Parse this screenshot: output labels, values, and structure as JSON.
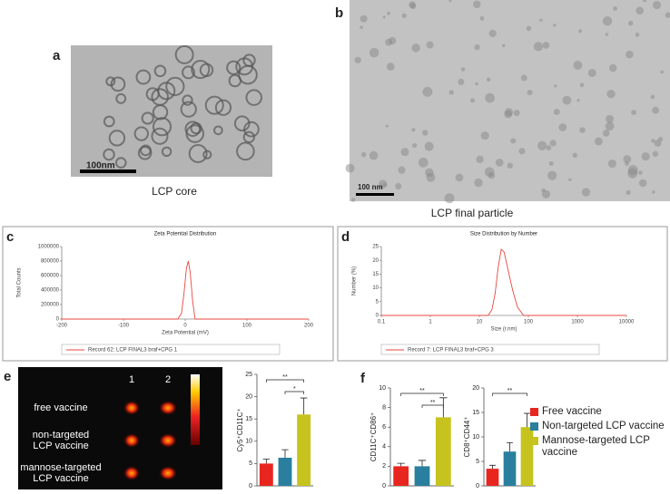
{
  "panels": {
    "a": {
      "label": "a",
      "caption": "LCP core",
      "scale_bar": "100nm"
    },
    "b": {
      "label": "b",
      "caption": "LCP final particle",
      "scale_bar": "100 nm"
    },
    "e": {
      "label": "e",
      "columns": [
        "1",
        "2"
      ],
      "rows": [
        [
          "free vaccine"
        ],
        [
          "non-targeted",
          "LCP vaccine"
        ],
        [
          "mannose-targeted",
          "LCP vaccine"
        ]
      ]
    },
    "f": {
      "label": "f"
    }
  },
  "chart_data": [
    {
      "type": "line",
      "panel": "c",
      "title": "Zeta Potential Distribution",
      "x_label": "Zeta Potential (mV)",
      "y_label": "Total Counts",
      "xlim": [
        -200,
        200
      ],
      "xticks": [
        -200,
        -100,
        0,
        100,
        200
      ],
      "ylim": [
        0,
        1000000
      ],
      "yticks": [
        0,
        200000,
        400000,
        600000,
        800000,
        1000000
      ],
      "series": [
        {
          "name": "Record 62: LCP FINAL3 braf+CPG 1",
          "color": "#e8473f",
          "x": [
            -200,
            -12,
            -6,
            -2,
            2,
            5,
            8,
            12,
            16,
            200
          ],
          "values": [
            0,
            0,
            80000,
            350000,
            700000,
            800000,
            650000,
            250000,
            0,
            0
          ]
        }
      ]
    },
    {
      "type": "line",
      "panel": "d",
      "title": "Size Distribution by Number",
      "x_label": "Size (r.nm)",
      "y_label": "Number (%)",
      "log_x": true,
      "xlim": [
        0.1,
        10000
      ],
      "xticks": [
        0.1,
        1,
        10,
        100,
        1000,
        10000
      ],
      "ylim": [
        0,
        25
      ],
      "yticks": [
        0,
        5,
        10,
        15,
        20,
        25
      ],
      "series": [
        {
          "name": "Record 7: LCP FINAL3 braf+CPG 3",
          "color": "#e8473f",
          "x": [
            0.1,
            15,
            18,
            21,
            24,
            28,
            32,
            38,
            48,
            60,
            80,
            10000
          ],
          "values": [
            0,
            0,
            2,
            8,
            17,
            24,
            23,
            17,
            9,
            3,
            0,
            0
          ]
        }
      ]
    },
    {
      "type": "bar",
      "y_label": "Cy5⁺CD11C⁺",
      "categories": [
        null,
        null,
        null
      ],
      "values": [
        5,
        6.3,
        16
      ],
      "errors": [
        1,
        1.8,
        3.7
      ],
      "colors": [
        "#e8261f",
        "#2a7f9e",
        "#c6c31e"
      ],
      "ylim": [
        0,
        25
      ],
      "yticks": [
        0,
        5,
        10,
        15,
        20,
        25
      ],
      "annotations": [
        "**",
        "*"
      ]
    },
    {
      "type": "bar",
      "y_label": "CD11C⁺CD86⁺",
      "categories": [
        null,
        null,
        null
      ],
      "values": [
        2,
        2,
        7
      ],
      "errors": [
        0.3,
        0.6,
        2
      ],
      "colors": [
        "#e8261f",
        "#2a7f9e",
        "#c6c31e"
      ],
      "ylim": [
        0,
        10
      ],
      "yticks": [
        0,
        2,
        4,
        6,
        8,
        10
      ],
      "annotations": [
        "**",
        "**"
      ]
    },
    {
      "type": "bar",
      "y_label": "CD8⁺CD44⁺",
      "categories": [
        null,
        null,
        null
      ],
      "values": [
        3.5,
        7,
        12
      ],
      "errors": [
        0.7,
        1.8,
        2.8
      ],
      "colors": [
        "#e8261f",
        "#2a7f9e",
        "#c6c31e"
      ],
      "ylim": [
        0,
        20
      ],
      "yticks": [
        0,
        5,
        10,
        15,
        20
      ],
      "annotations": [
        "**"
      ]
    }
  ],
  "legend": [
    {
      "name": "Free vaccine",
      "color": "#e8261f"
    },
    {
      "name": "Non-targeted LCP vaccine",
      "color": "#2a7f9e"
    },
    {
      "name": "Mannose-targeted LCP vaccine",
      "color": "#c6c31e"
    }
  ]
}
